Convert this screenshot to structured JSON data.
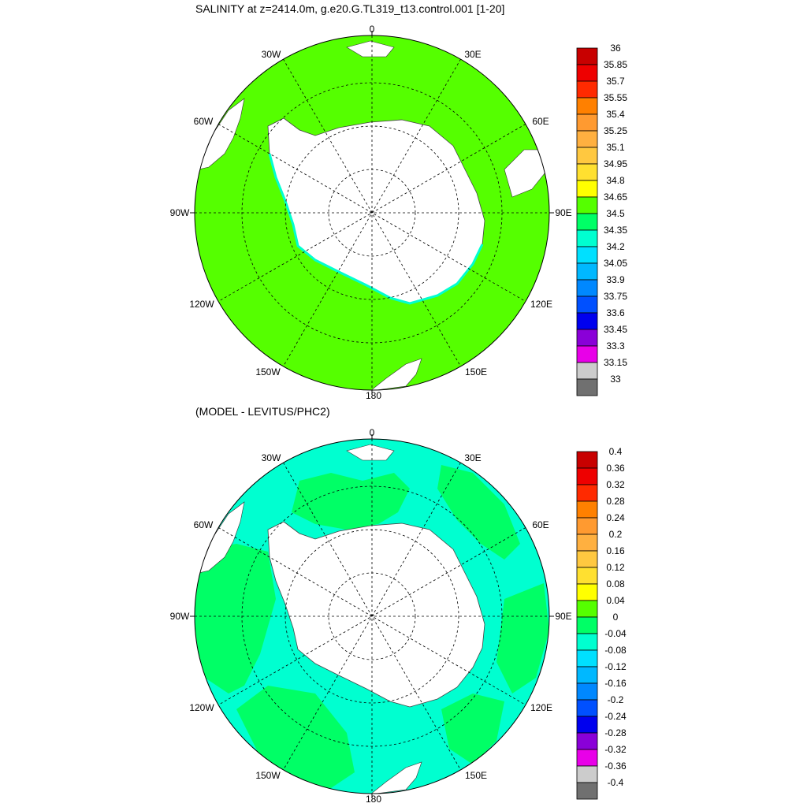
{
  "panels": [
    {
      "title": "SALINITY at z=2414.0m, g.e20.G.TL319_t13.control.001 [1-20]",
      "lon_labels": [
        "0",
        "30E",
        "60E",
        "90E",
        "120E",
        "150E",
        "180",
        "150W",
        "120W",
        "90W",
        "60W",
        "30W"
      ],
      "dominant_color": "#55ff00",
      "colorbar": {
        "labels": [
          "36",
          "35.85",
          "35.7",
          "35.55",
          "35.4",
          "35.25",
          "35.1",
          "34.95",
          "34.8",
          "34.65",
          "34.5",
          "34.35",
          "34.2",
          "34.05",
          "33.9",
          "33.75",
          "33.6",
          "33.45",
          "33.3",
          "33.15",
          "33"
        ],
        "colors": [
          "#c80000",
          "#ee0000",
          "#ff2a00",
          "#ff8000",
          "#ff9a30",
          "#ffb040",
          "#ffc840",
          "#ffe030",
          "#ffff00",
          "#55ff00",
          "#00ff66",
          "#00ffd0",
          "#00e0ff",
          "#00b8ff",
          "#0088ff",
          "#0050ff",
          "#0000ee",
          "#8a00d8",
          "#e800e8",
          "#cccccc",
          "#707070"
        ]
      }
    },
    {
      "title": "(MODEL - LEVITUS/PHC2)",
      "lon_labels": [
        "0",
        "30E",
        "60E",
        "90E",
        "120E",
        "150E",
        "180",
        "150W",
        "120W",
        "90W",
        "60W",
        "30W"
      ],
      "dominant_color": "#00ffd0",
      "colorbar": {
        "labels": [
          "0.4",
          "0.36",
          "0.32",
          "0.28",
          "0.24",
          "0.2",
          "0.16",
          "0.12",
          "0.08",
          "0.04",
          "0",
          "-0.04",
          "-0.08",
          "-0.12",
          "-0.16",
          "-0.2",
          "-0.24",
          "-0.28",
          "-0.32",
          "-0.36",
          "-0.4"
        ],
        "colors": [
          "#c80000",
          "#ee0000",
          "#ff2a00",
          "#ff8000",
          "#ff9a30",
          "#ffb040",
          "#ffc840",
          "#ffe030",
          "#ffff00",
          "#55ff00",
          "#00ff66",
          "#00ffd0",
          "#00e0ff",
          "#00b8ff",
          "#0088ff",
          "#0050ff",
          "#0000ee",
          "#8a00d8",
          "#e800e8",
          "#cccccc",
          "#707070"
        ]
      }
    }
  ]
}
